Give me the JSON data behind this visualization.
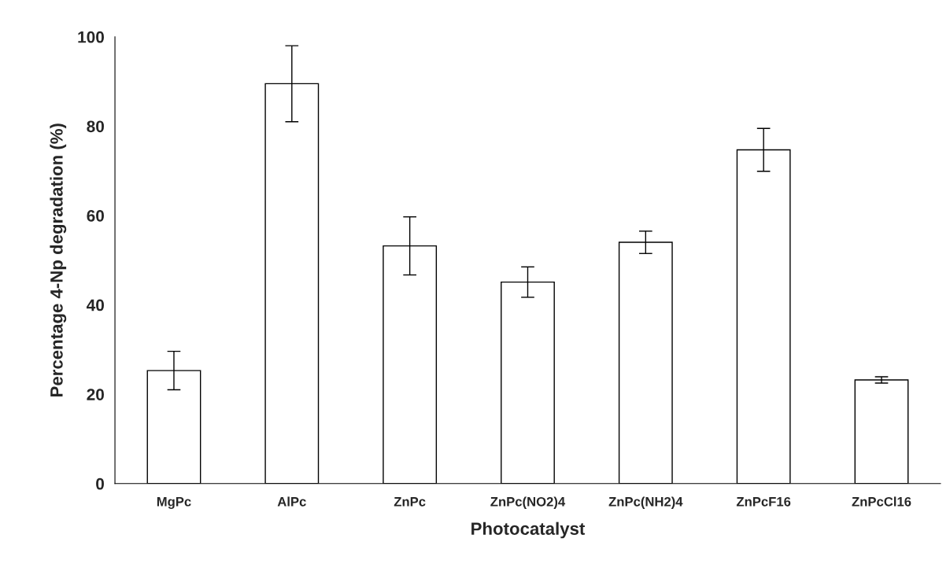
{
  "chart_data": {
    "type": "bar",
    "xlabel": "Photocatalyst",
    "ylabel": "Percentage 4-Np degradation (%)",
    "categories": [
      "MgPc",
      "AlPc",
      "ZnPc",
      "ZnPc(NO2)4",
      "ZnPc(NH2)4",
      "ZnPcF16",
      "ZnPcCl16"
    ],
    "values": [
      25.3,
      89.5,
      53.2,
      45.1,
      54.0,
      74.7,
      23.2
    ],
    "errors": [
      4.3,
      8.5,
      6.5,
      3.4,
      2.5,
      4.8,
      0.7
    ],
    "color": "#ffffff",
    "ylim": [
      0,
      100
    ],
    "yticks": [
      0,
      20,
      40,
      60,
      80,
      100
    ],
    "grid": false,
    "legend": false
  }
}
